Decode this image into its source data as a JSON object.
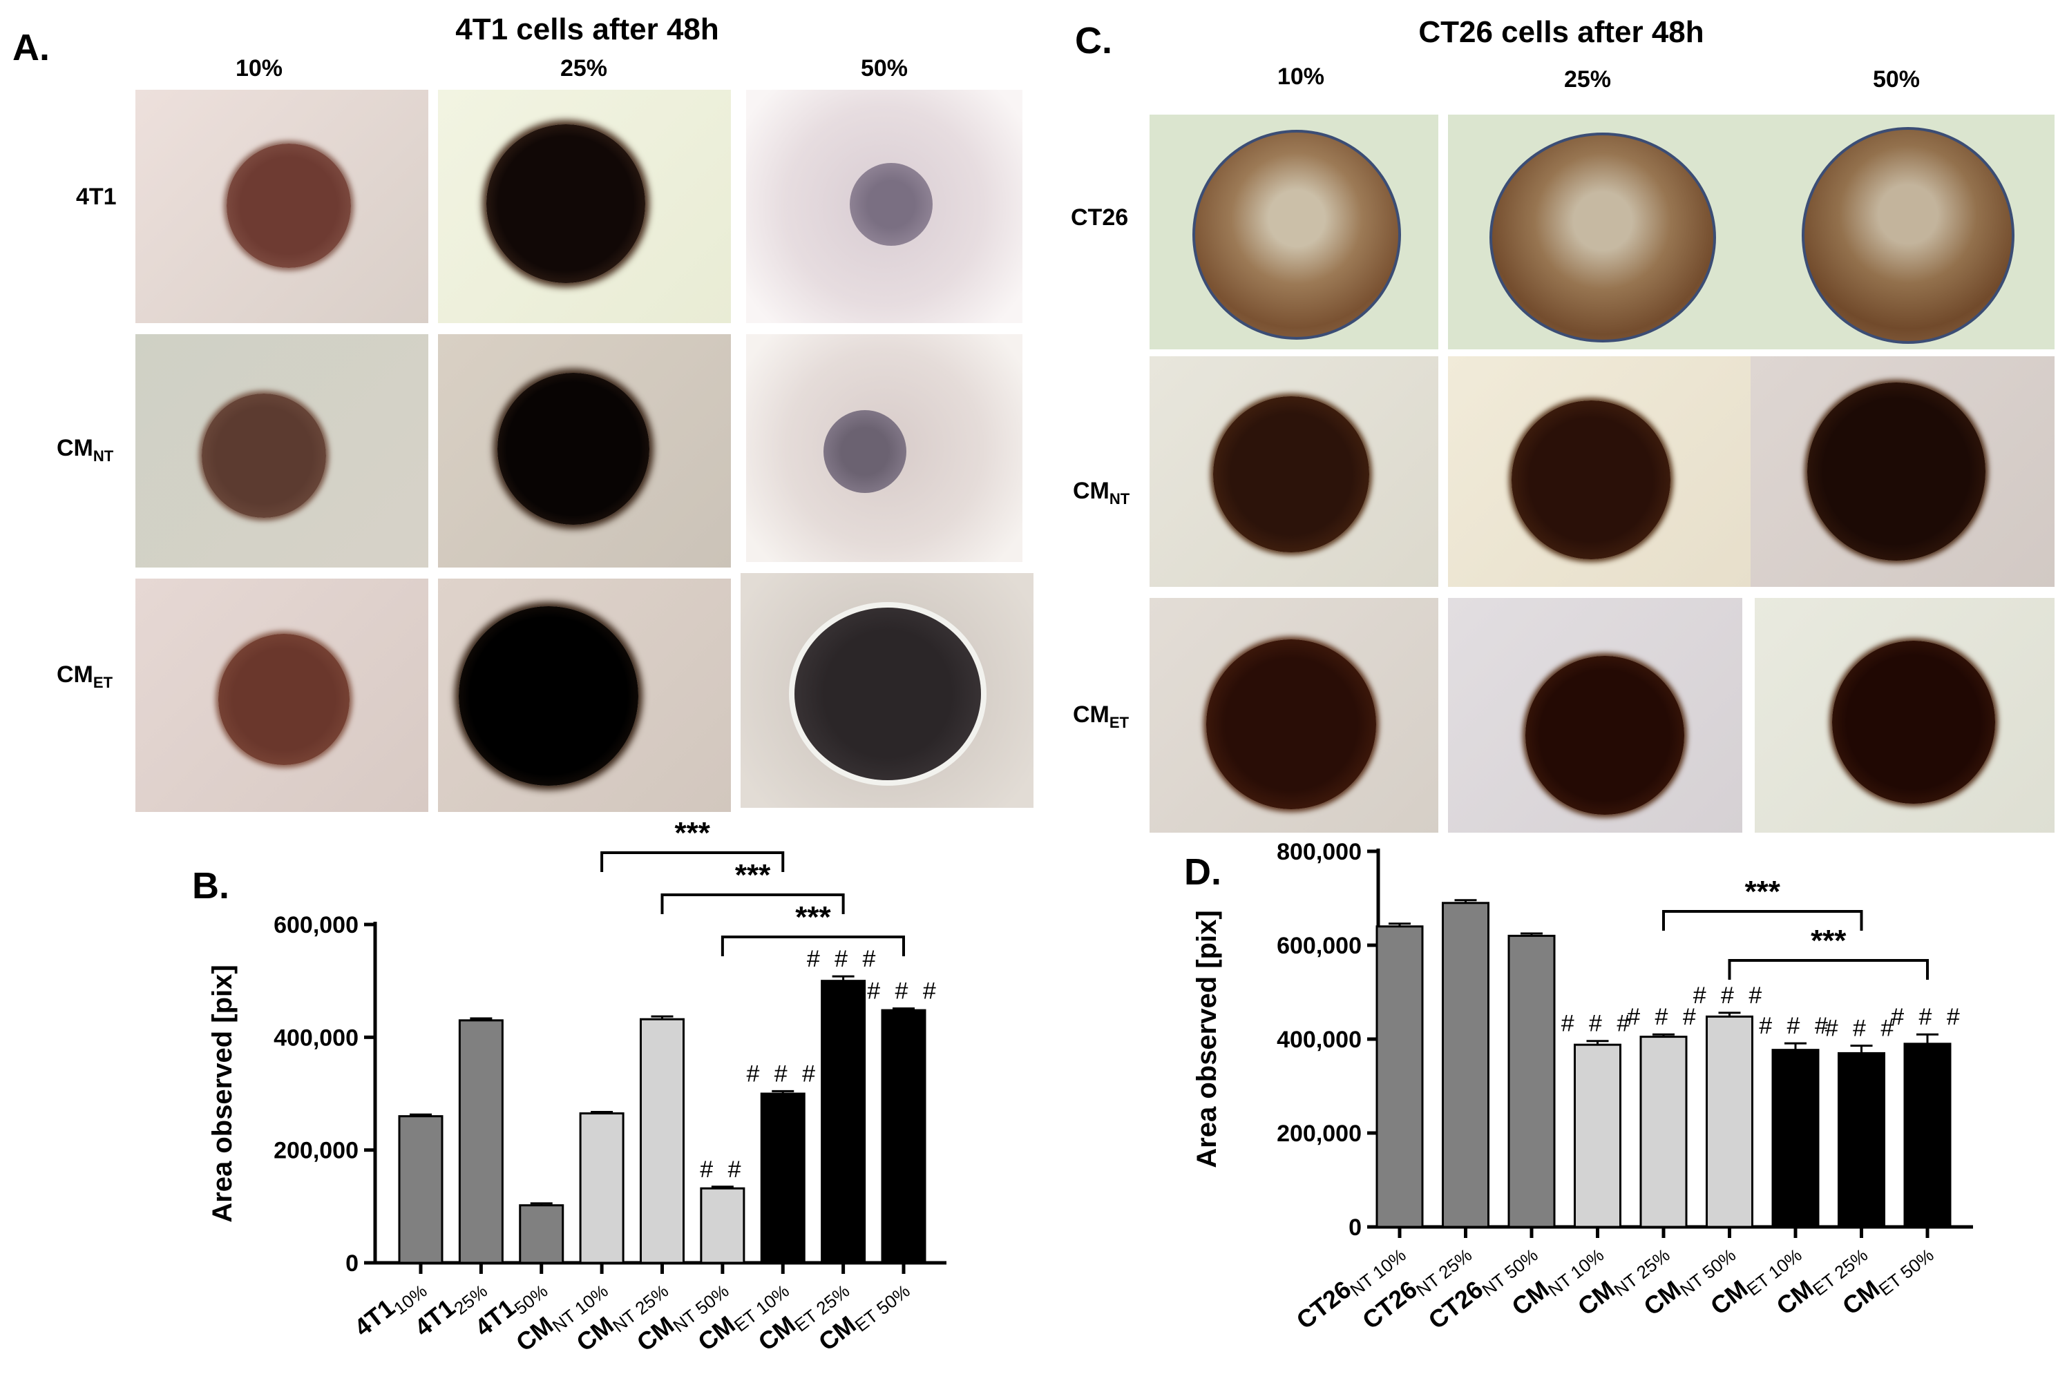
{
  "panelA": {
    "letter": "A.",
    "title": "4T1 cells after 48h",
    "columns": [
      "10%",
      "25%",
      "50%"
    ],
    "rows": [
      {
        "main": "4T1",
        "sub": ""
      },
      {
        "main": "CM",
        "sub": "NT"
      },
      {
        "main": "CM",
        "sub": "ET"
      }
    ]
  },
  "panelC": {
    "letter": "C.",
    "title": "CT26 cells after 48h",
    "columns": [
      "10%",
      "25%",
      "50%"
    ],
    "rows": [
      {
        "main": "CT26",
        "sub": ""
      },
      {
        "main": "CM",
        "sub": "NT"
      },
      {
        "main": "CM",
        "sub": "ET"
      }
    ]
  },
  "chart_data": [
    {
      "panel": "B.",
      "type": "bar",
      "ylabel": "Area observed [pix]",
      "ylim": [
        0,
        600000
      ],
      "yticks": [
        "0",
        "200,000",
        "400,000",
        "600,000"
      ],
      "categories": [
        {
          "main": "4T1",
          "sub": "10%"
        },
        {
          "main": "4T1",
          "sub": "25%"
        },
        {
          "main": "4T1",
          "sub": "50%"
        },
        {
          "main": "CM",
          "sub": "NT 10%"
        },
        {
          "main": "CM",
          "sub": "NT 25%"
        },
        {
          "main": "CM",
          "sub": "NT 50%"
        },
        {
          "main": "CM",
          "sub": "ET 10%"
        },
        {
          "main": "CM",
          "sub": "ET 25%"
        },
        {
          "main": "CM",
          "sub": "ET 50%"
        }
      ],
      "values": [
        260000,
        430000,
        102000,
        265000,
        432000,
        132000,
        300000,
        500000,
        448000
      ],
      "errors": [
        3000,
        3500,
        3500,
        2500,
        5000,
        3000,
        4500,
        8000,
        3000
      ],
      "colors": [
        "#808080",
        "#808080",
        "#808080",
        "#d3d3d3",
        "#d3d3d3",
        "#d3d3d3",
        "#000000",
        "#000000",
        "#000000"
      ],
      "annotations": [
        "",
        "",
        "",
        "",
        "",
        "##",
        "###",
        "###",
        "###"
      ],
      "brackets": [
        {
          "from": 3,
          "to": 6,
          "label": "***"
        },
        {
          "from": 4,
          "to": 7,
          "label": "***"
        },
        {
          "from": 5,
          "to": 8,
          "label": "***"
        }
      ]
    },
    {
      "panel": "D.",
      "type": "bar",
      "ylabel": "Area observed [pix]",
      "ylim": [
        0,
        800000
      ],
      "yticks": [
        "0",
        "200,000",
        "400,000",
        "600,000",
        "800,000"
      ],
      "categories": [
        {
          "main": "CT26",
          "sub": "NT 10%"
        },
        {
          "main": "CT26",
          "sub": "NT 25%"
        },
        {
          "main": "CT26",
          "sub": "NT 50%"
        },
        {
          "main": "CM",
          "sub": "NT 10%"
        },
        {
          "main": "CM",
          "sub": "NT 25%"
        },
        {
          "main": "CM",
          "sub": "NT 50%"
        },
        {
          "main": "CM",
          "sub": "ET 10%"
        },
        {
          "main": "CM",
          "sub": "ET 25%"
        },
        {
          "main": "CM",
          "sub": "ET 50%"
        }
      ],
      "values": [
        640000,
        690000,
        620000,
        388000,
        405000,
        448000,
        377000,
        370000,
        390000
      ],
      "errors": [
        6000,
        6000,
        5000,
        8000,
        5000,
        8000,
        14000,
        16000,
        20000
      ],
      "colors": [
        "#808080",
        "#808080",
        "#808080",
        "#d3d3d3",
        "#d3d3d3",
        "#d3d3d3",
        "#000000",
        "#000000",
        "#000000"
      ],
      "annotations": [
        "",
        "",
        "",
        "###",
        "###",
        "###",
        "###",
        "###",
        "###"
      ],
      "brackets": [
        {
          "from": 4,
          "to": 7,
          "label": "***"
        },
        {
          "from": 5,
          "to": 8,
          "label": "***"
        }
      ]
    }
  ]
}
